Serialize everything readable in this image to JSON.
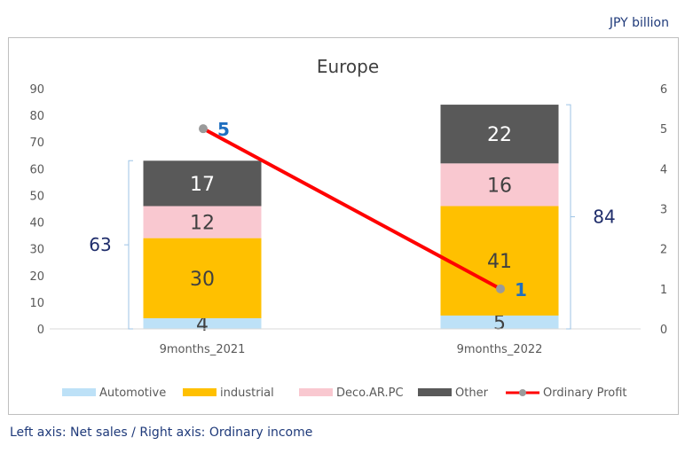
{
  "unit_label": "JPY  billion",
  "footnote": "Left axis: Net sales / Right axis: Ordinary income",
  "chart_data": {
    "type": "bar",
    "stacked": true,
    "title": "Europe",
    "categories": [
      "9months_2021",
      "9months_2022"
    ],
    "series": [
      {
        "name": "Automotive",
        "values": [
          4,
          5
        ],
        "color": "#bde1f7"
      },
      {
        "name": "industrial",
        "values": [
          30,
          41
        ],
        "color": "#ffc000"
      },
      {
        "name": "Deco.AR.PC",
        "values": [
          12,
          16
        ],
        "color": "#f9c8d0"
      },
      {
        "name": "Other",
        "values": [
          17,
          22
        ],
        "color": "#595959"
      }
    ],
    "line_series": {
      "name": "Ordinary Profit",
      "values": [
        5,
        1
      ],
      "color": "#ff0000",
      "marker_color": "#9a9a9a",
      "label_color": "#1f6fc0"
    },
    "totals": [
      63,
      84
    ],
    "ylim": [
      0,
      90
    ],
    "yticks": [
      0,
      10,
      20,
      30,
      40,
      50,
      60,
      70,
      80,
      90
    ],
    "y2lim": [
      0,
      6
    ],
    "y2ticks": [
      0,
      1,
      2,
      3,
      4,
      5,
      6
    ],
    "legend_position": "bottom",
    "grid": false
  }
}
